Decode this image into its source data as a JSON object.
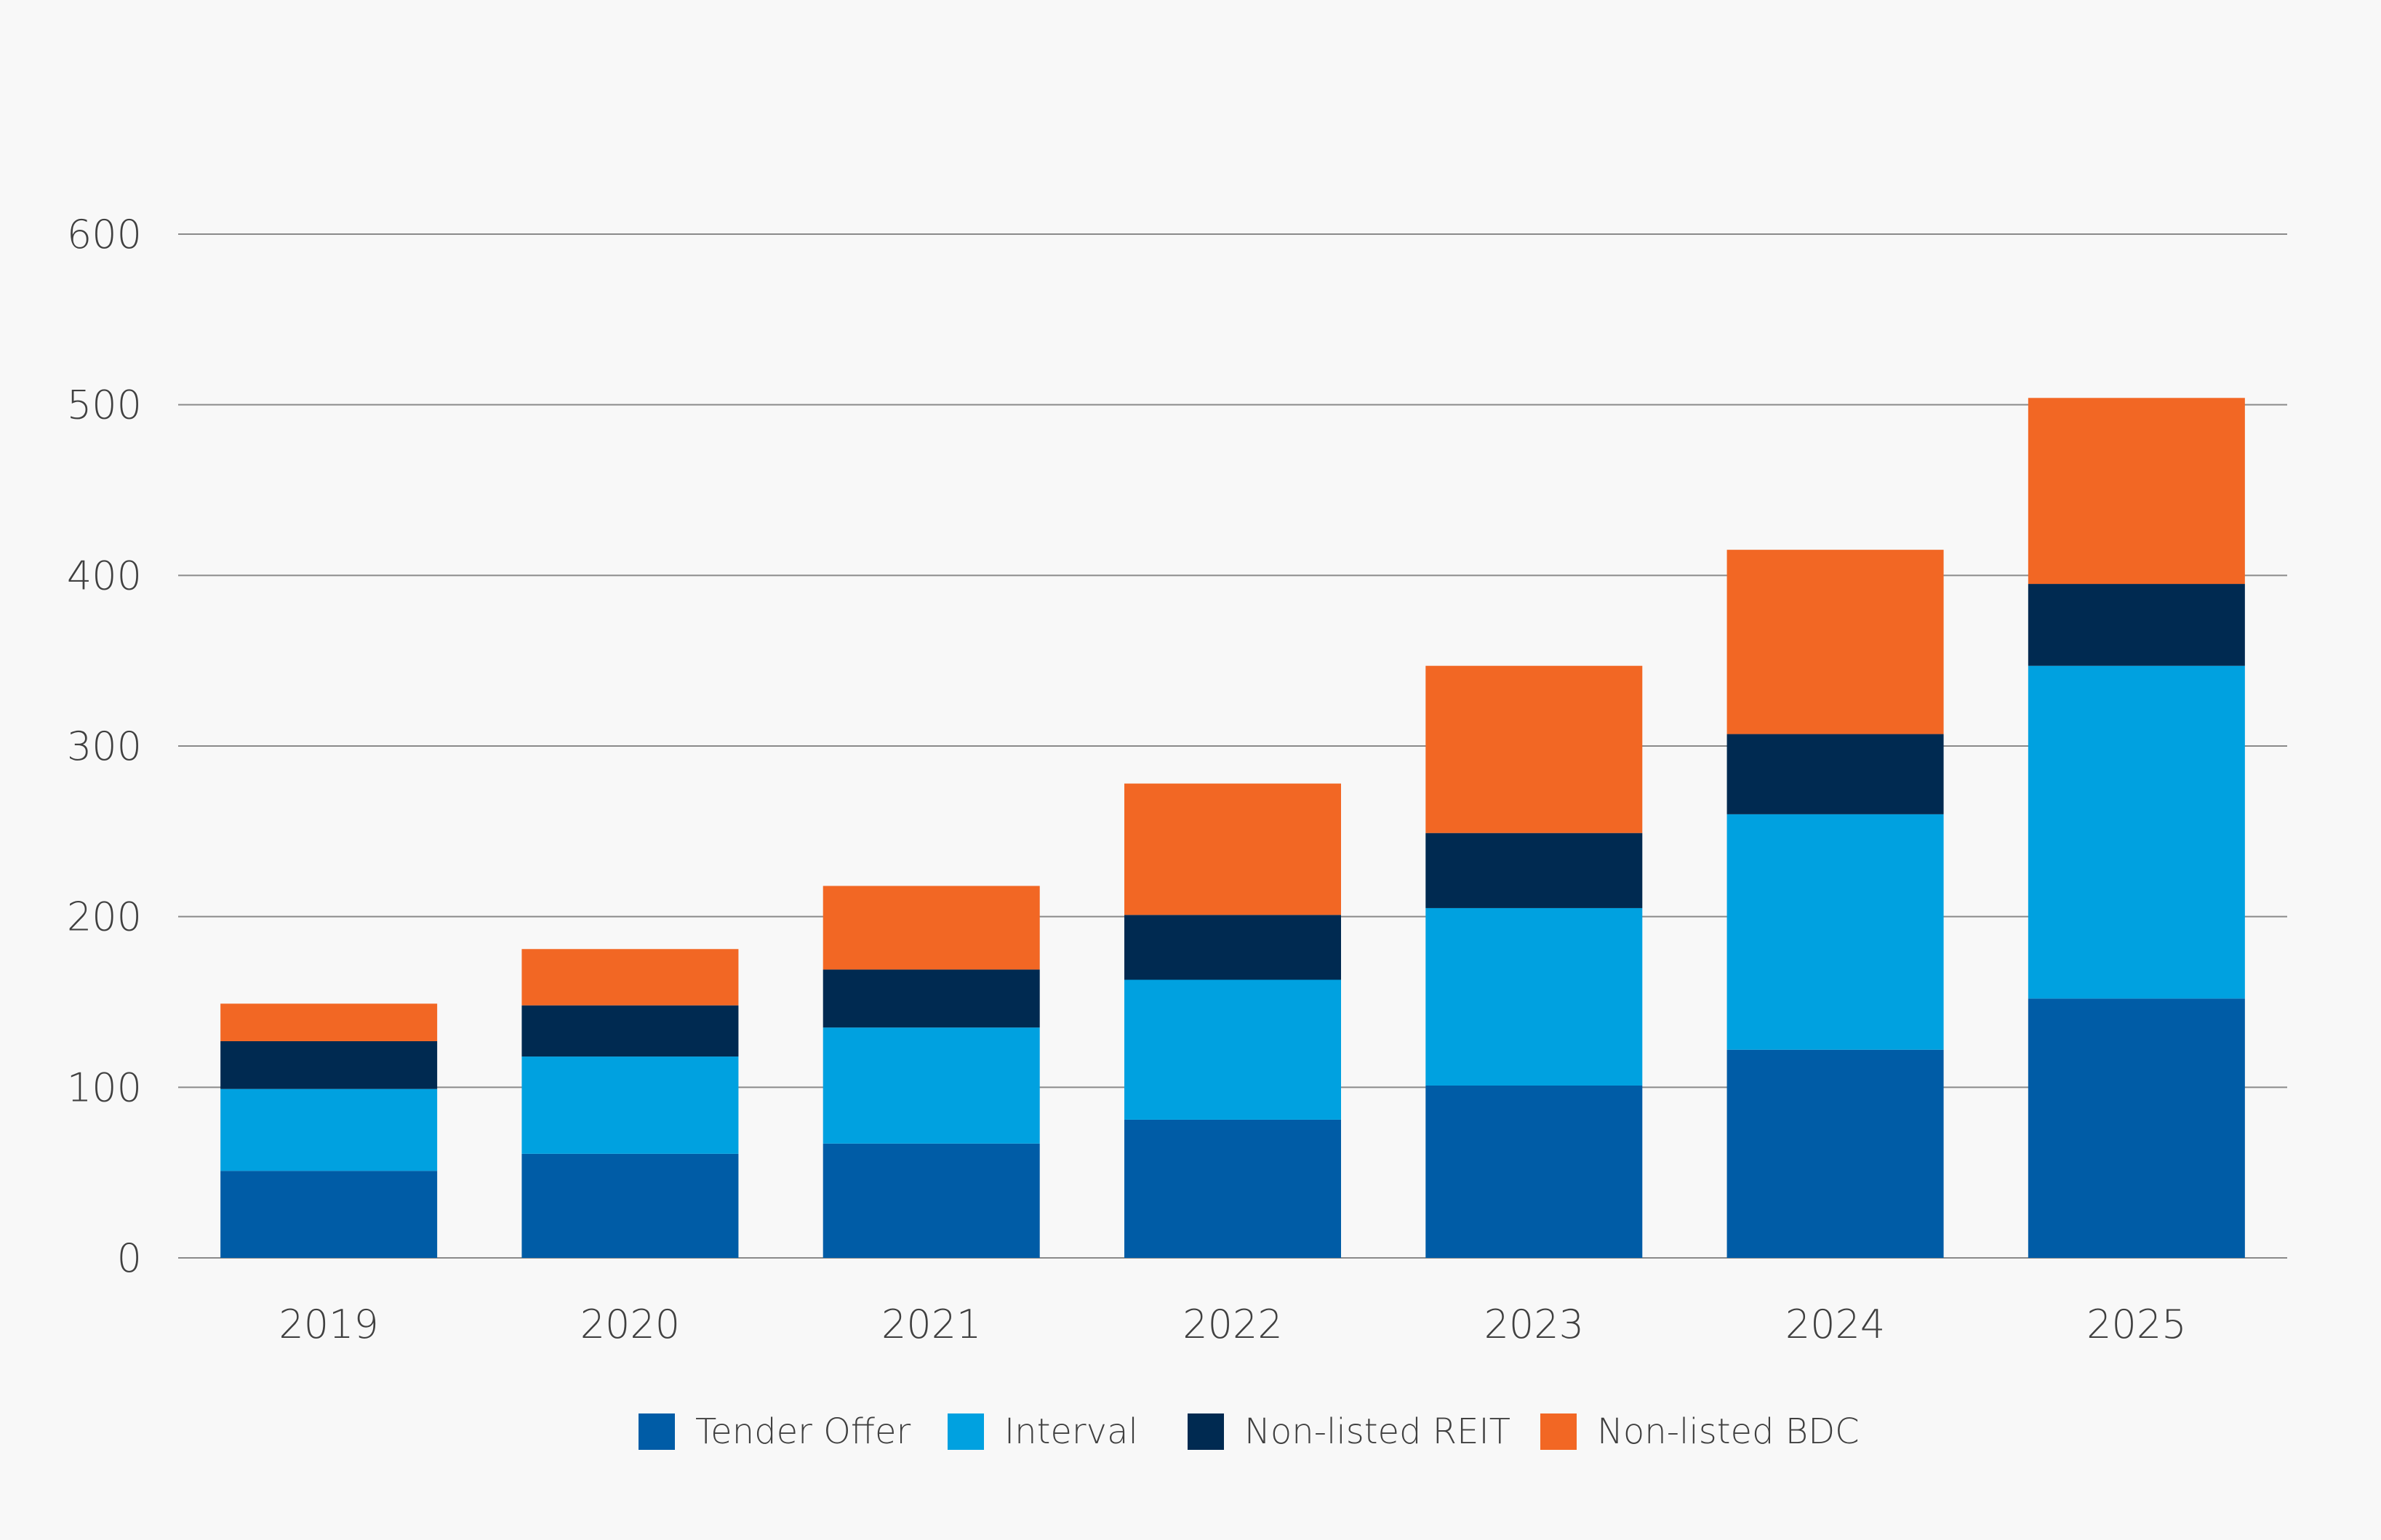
{
  "chart_data": {
    "type": "bar",
    "stacked": true,
    "title": "",
    "xlabel": "",
    "ylabel": "",
    "categories": [
      "2019",
      "2020",
      "2021",
      "2022",
      "2023",
      "2024",
      "2025"
    ],
    "series": [
      {
        "name": "Tender Offer",
        "color": "#005ca6",
        "values": [
          51,
          61,
          67,
          81,
          101,
          122,
          152
        ]
      },
      {
        "name": "Interval",
        "color": "#00a1e0",
        "values": [
          48,
          57,
          68,
          82,
          104,
          138,
          195
        ]
      },
      {
        "name": "Non-listed REIT",
        "color": "#002a51",
        "values": [
          28,
          30,
          34,
          38,
          44,
          47,
          48
        ]
      },
      {
        "name": "Non-listed BDC",
        "color": "#f26724",
        "values": [
          22,
          33,
          49,
          77,
          98,
          108,
          109
        ]
      }
    ],
    "ylim": [
      0,
      600
    ],
    "yticks": [
      "0",
      "100",
      "200",
      "300",
      "400",
      "500",
      "600"
    ],
    "grid": true,
    "legend_position": "bottom-center"
  }
}
